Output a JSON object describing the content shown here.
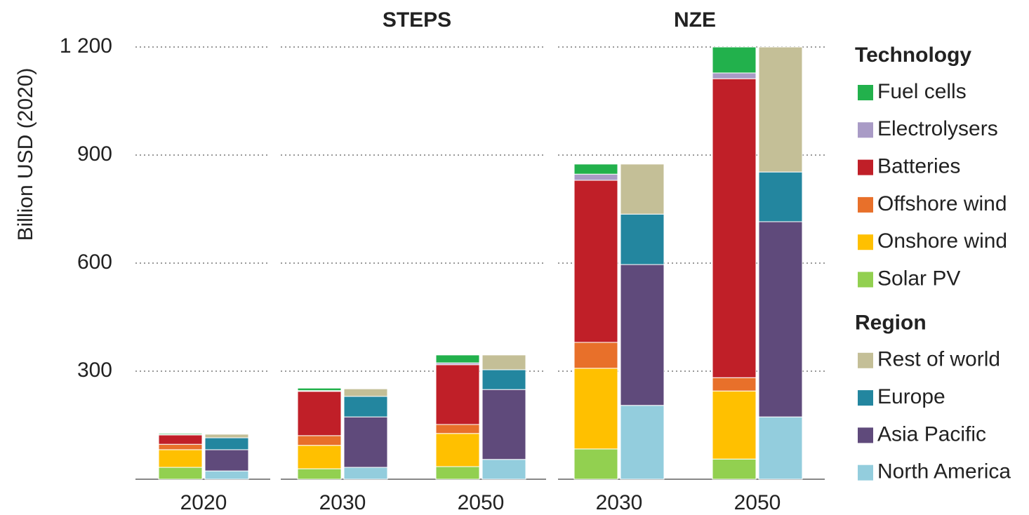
{
  "chart_data": {
    "type": "bar",
    "stacked": true,
    "y_label": "Billion USD (2020)",
    "ylim": [
      0,
      1200
    ],
    "yticks": [
      300,
      600,
      900,
      {
        "value": 1200,
        "label": "1 200"
      }
    ],
    "grid": true,
    "legend": "right",
    "panels": [
      {
        "title": null,
        "categories": [
          "2020"
        ]
      },
      {
        "title": "STEPS",
        "categories": [
          "2030",
          "2050"
        ]
      },
      {
        "title": "NZE",
        "categories": [
          "2030",
          "2050"
        ]
      }
    ],
    "series_groups": [
      {
        "title": "Technology",
        "series": [
          {
            "name": "Solar PV",
            "color": "#92d050",
            "values": [
              33,
              29,
              35,
              84,
              56
            ]
          },
          {
            "name": "Onshore wind",
            "color": "#ffc000",
            "values": [
              49,
              65,
              92,
              224,
              189
            ]
          },
          {
            "name": "Offshore wind",
            "color": "#e8702a",
            "values": [
              15,
              27,
              25,
              72,
              37
            ]
          },
          {
            "name": "Batteries",
            "color": "#c01f28",
            "values": [
              26,
              123,
              166,
              450,
              830
            ]
          },
          {
            "name": "Electrolysers",
            "color": "#a99bc6",
            "values": [
              1,
              2,
              5,
              17,
              16
            ]
          },
          {
            "name": "Fuel cells",
            "color": "#22b14c",
            "values": [
              3,
              7,
              22,
              28,
              72
            ]
          }
        ]
      },
      {
        "title": "Region",
        "series": [
          {
            "name": "North America",
            "color": "#93cddd",
            "values": [
              23,
              33,
              55,
              205,
              173
            ]
          },
          {
            "name": "Asia Pacific",
            "color": "#5f4a7b",
            "values": [
              59,
              140,
              194,
              391,
              542
            ]
          },
          {
            "name": "Europe",
            "color": "#23869f",
            "values": [
              33,
              57,
              55,
              140,
              138
            ]
          },
          {
            "name": "Rest of world",
            "color": "#c4bf97",
            "values": [
              10,
              21,
              41,
              139,
              347
            ]
          }
        ]
      }
    ]
  }
}
